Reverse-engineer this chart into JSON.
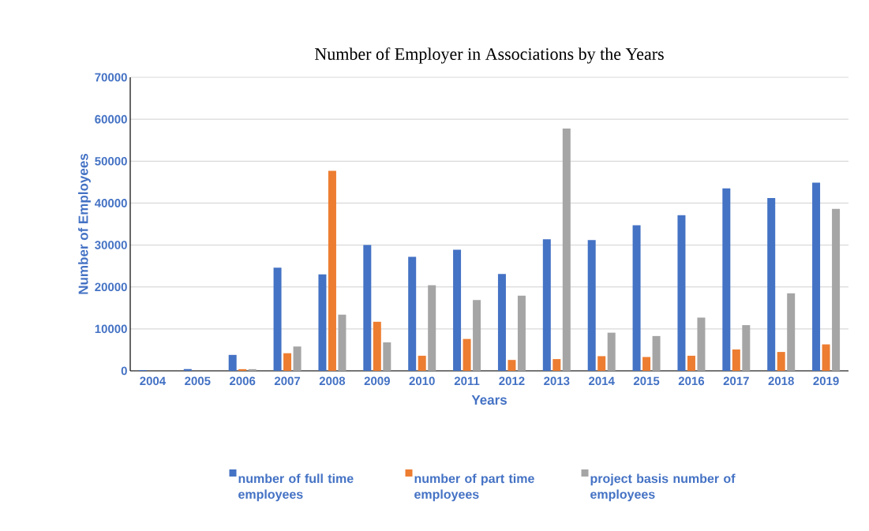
{
  "chart_data": {
    "type": "bar",
    "title": "Number of Employer in Associations by the Years",
    "xlabel": "Years",
    "ylabel": "Number of Employees",
    "categories": [
      "2004",
      "2005",
      "2006",
      "2007",
      "2008",
      "2009",
      "2010",
      "2011",
      "2012",
      "2013",
      "2014",
      "2015",
      "2016",
      "2017",
      "2018",
      "2019"
    ],
    "series": [
      {
        "name": "number of full time employees",
        "color": "#4472c4",
        "values": [
          200,
          400,
          3800,
          24600,
          23000,
          30000,
          27200,
          28900,
          23100,
          31400,
          31200,
          34700,
          37100,
          43500,
          41200,
          44900
        ]
      },
      {
        "name": "number of part time employees",
        "color": "#ed7d31",
        "values": [
          0,
          0,
          400,
          4200,
          47700,
          11700,
          3600,
          7600,
          2600,
          2800,
          3500,
          3300,
          3600,
          5100,
          4500,
          6300
        ]
      },
      {
        "name": "project basis number of employees",
        "color": "#a5a5a5",
        "values": [
          0,
          0,
          400,
          5800,
          13400,
          6800,
          20400,
          16900,
          17900,
          57800,
          9100,
          8300,
          12700,
          10900,
          18500,
          38600
        ]
      }
    ],
    "ylim": [
      0,
      70000
    ],
    "yticks": [
      0,
      10000,
      20000,
      30000,
      40000,
      50000,
      60000,
      70000
    ],
    "grid": "y",
    "legend": "bottom"
  }
}
